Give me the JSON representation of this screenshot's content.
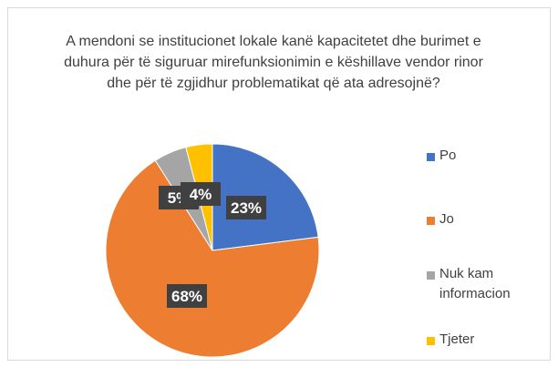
{
  "chart_data": {
    "type": "pie",
    "title": "A mendoni se institucionet lokale kanë kapacitetet dhe burimet e duhura për të siguruar mirefunksionimin e këshillave vendor rinor dhe për të zgjidhur problematikat që ata adresojnë?",
    "categories": [
      "Po",
      "Jo",
      "Nuk kam informacion",
      "Tjeter"
    ],
    "values": [
      23,
      68,
      5,
      4
    ],
    "value_labels": [
      "23%",
      "68%",
      "5%",
      "4%"
    ],
    "colors": [
      "#4472c4",
      "#ed7d31",
      "#a5a5a5",
      "#ffc000"
    ],
    "legend": "right"
  }
}
